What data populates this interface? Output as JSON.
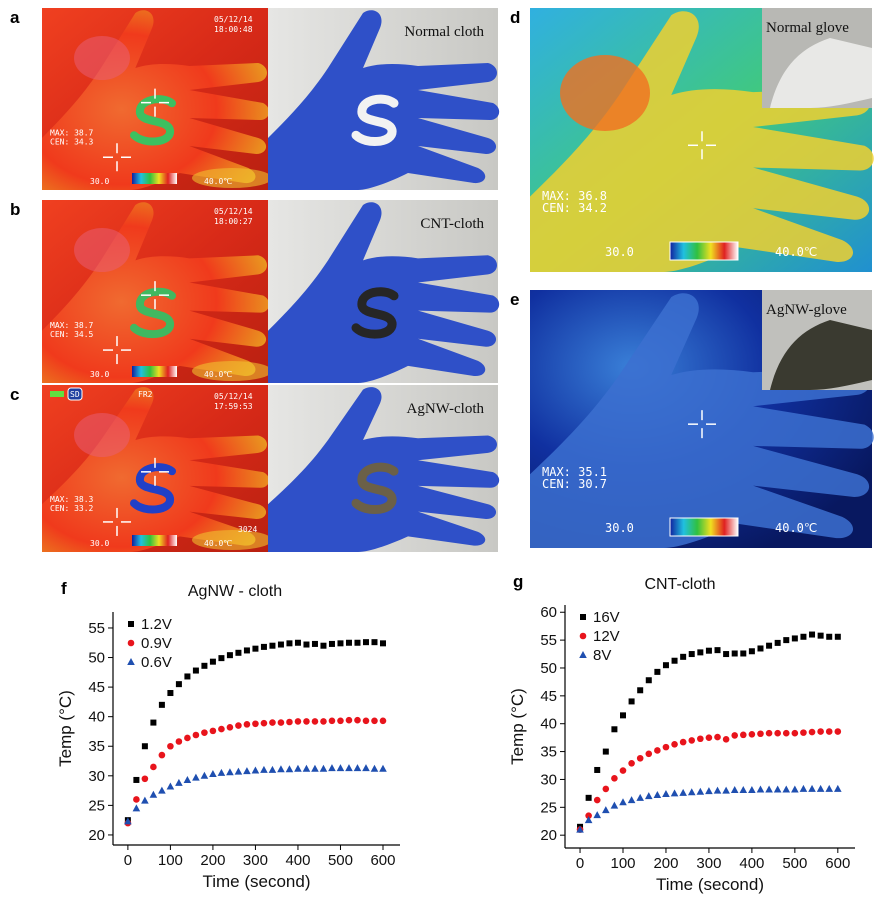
{
  "panels": [
    {
      "label": "a",
      "date": "05/12/14",
      "time": "18:00:48",
      "max": "MAX: 38.7",
      "cen": "CEN: 34.3",
      "scale_low": "30.0",
      "scale_high": "40.0℃",
      "photo_label": "Normal cloth"
    },
    {
      "label": "b",
      "date": "05/12/14",
      "time": "18:00:27",
      "max": "MAX: 38.7",
      "cen": "CEN: 34.5",
      "scale_low": "30.0",
      "scale_high": "40.0℃",
      "photo_label": "CNT-cloth"
    },
    {
      "label": "c",
      "date": "05/12/14",
      "time": "17:59:53",
      "max": "MAX: 38.3",
      "cen": "CEN: 33.2",
      "scale_low": "30.0",
      "scale_high": "40.0℃",
      "photo_label": "AgNW-cloth",
      "storage": "SD",
      "mode": "FR2",
      "frame": "3024"
    },
    {
      "label": "d",
      "max": "MAX: 36.8",
      "cen": "CEN: 34.2",
      "scale_low": "30.0",
      "scale_high": "40.0℃",
      "inset_label": "Normal glove"
    },
    {
      "label": "e",
      "max": "MAX: 35.1",
      "cen": "CEN: 30.7",
      "scale_low": "30.0",
      "scale_high": "40.0℃",
      "inset_label": "AgNW-glove"
    }
  ],
  "chart_data": [
    {
      "type": "scatter",
      "panel_label": "f",
      "title": "AgNW - cloth",
      "x_label": "Time (second)",
      "y_label": "Temp (°C)",
      "x": [
        0,
        20,
        40,
        60,
        80,
        100,
        120,
        140,
        160,
        180,
        200,
        220,
        240,
        260,
        280,
        300,
        320,
        340,
        360,
        380,
        400,
        420,
        440,
        460,
        480,
        500,
        520,
        540,
        560,
        580,
        600
      ],
      "series": [
        {
          "name": "1.2V",
          "color": "#000000",
          "marker": "square",
          "values": [
            22.5,
            29.3,
            35,
            39,
            42,
            44,
            45.5,
            46.8,
            47.8,
            48.6,
            49.3,
            49.9,
            50.4,
            50.8,
            51.2,
            51.5,
            51.8,
            52,
            52.2,
            52.4,
            52.5,
            52.2,
            52.3,
            52,
            52.3,
            52.4,
            52.5,
            52.5,
            52.6,
            52.6,
            52.4
          ]
        },
        {
          "name": "0.9V",
          "color": "#e8141c",
          "marker": "circle",
          "values": [
            22,
            26,
            29.5,
            31.5,
            33.5,
            35,
            35.8,
            36.4,
            36.9,
            37.3,
            37.6,
            37.9,
            38.2,
            38.5,
            38.7,
            38.8,
            38.9,
            39,
            39,
            39.1,
            39.2,
            39.2,
            39.2,
            39.2,
            39.3,
            39.3,
            39.4,
            39.4,
            39.3,
            39.3,
            39.3
          ]
        },
        {
          "name": "0.6V",
          "color": "#1f4fb0",
          "marker": "triangle",
          "values": [
            22.3,
            24.5,
            25.8,
            26.8,
            27.5,
            28.2,
            28.8,
            29.3,
            29.7,
            30,
            30.3,
            30.5,
            30.6,
            30.7,
            30.8,
            30.9,
            31,
            31,
            31.1,
            31.1,
            31.2,
            31.2,
            31.2,
            31.2,
            31.3,
            31.3,
            31.3,
            31.3,
            31.3,
            31.2,
            31.2
          ]
        }
      ],
      "xlim": [
        -35,
        640
      ],
      "ylim": [
        18.3,
        57.7
      ],
      "xticks": [
        0,
        100,
        200,
        300,
        400,
        500,
        600
      ],
      "yticks": [
        20,
        25,
        30,
        35,
        40,
        45,
        50,
        55
      ],
      "legend": "top-left"
    },
    {
      "type": "scatter",
      "panel_label": "g",
      "title": "CNT-cloth",
      "x_label": "Time (second)",
      "y_label": "Temp (°C)",
      "x": [
        0,
        20,
        40,
        60,
        80,
        100,
        120,
        140,
        160,
        180,
        200,
        220,
        240,
        260,
        280,
        300,
        320,
        340,
        360,
        380,
        400,
        420,
        440,
        460,
        480,
        500,
        520,
        540,
        560,
        580,
        600
      ],
      "series": [
        {
          "name": "16V",
          "color": "#000000",
          "marker": "square",
          "values": [
            21.5,
            26.7,
            31.7,
            35,
            39,
            41.5,
            44,
            46,
            47.8,
            49.3,
            50.5,
            51.3,
            52,
            52.5,
            52.8,
            53.1,
            53.2,
            52.5,
            52.6,
            52.6,
            53,
            53.5,
            54,
            54.5,
            55,
            55.3,
            55.6,
            56,
            55.8,
            55.6,
            55.6
          ]
        },
        {
          "name": "12V",
          "color": "#e8141c",
          "marker": "circle",
          "values": [
            21,
            23.5,
            26.3,
            28.3,
            30.2,
            31.6,
            32.9,
            33.8,
            34.6,
            35.2,
            35.8,
            36.3,
            36.7,
            37,
            37.3,
            37.5,
            37.6,
            37.2,
            37.9,
            38,
            38.1,
            38.2,
            38.3,
            38.3,
            38.3,
            38.3,
            38.4,
            38.5,
            38.6,
            38.6,
            38.6
          ]
        },
        {
          "name": "8V",
          "color": "#1f4fb0",
          "marker": "triangle",
          "values": [
            21,
            22.7,
            23.6,
            24.5,
            25.3,
            25.9,
            26.3,
            26.7,
            27,
            27.2,
            27.4,
            27.5,
            27.6,
            27.7,
            27.8,
            27.9,
            28,
            28,
            28.1,
            28.1,
            28.1,
            28.2,
            28.2,
            28.2,
            28.2,
            28.2,
            28.3,
            28.3,
            28.3,
            28.3,
            28.3
          ]
        }
      ],
      "xlim": [
        -35,
        640
      ],
      "ylim": [
        17.7,
        61.3
      ],
      "xticks": [
        0,
        100,
        200,
        300,
        400,
        500,
        600
      ],
      "yticks": [
        20,
        25,
        30,
        35,
        40,
        45,
        50,
        55,
        60
      ],
      "legend": "top-left"
    }
  ]
}
